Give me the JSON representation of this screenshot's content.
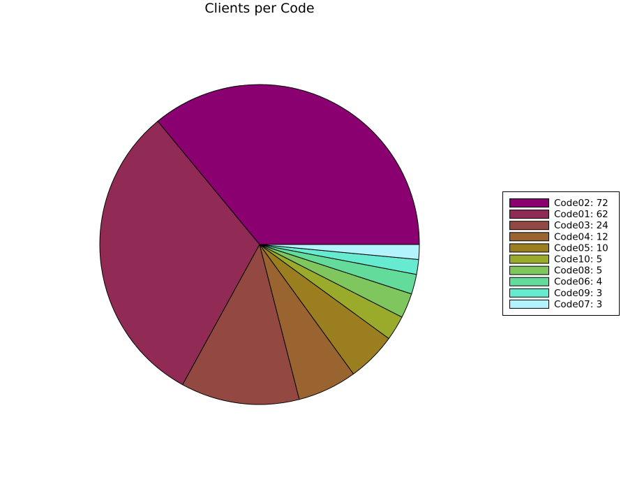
{
  "chart_data": {
    "type": "pie",
    "title": "Clients per Code",
    "legend_position": "right",
    "start_angle_deg": 0,
    "direction": "counterclockwise",
    "slices": [
      {
        "label": "Code02",
        "value": 72,
        "legend": "Code02: 72",
        "color": "#8b0071"
      },
      {
        "label": "Code01",
        "value": 62,
        "legend": "Code01: 62",
        "color": "#912b55"
      },
      {
        "label": "Code03",
        "value": 24,
        "legend": "Code03: 24",
        "color": "#934942"
      },
      {
        "label": "Code04",
        "value": 12,
        "legend": "Code04: 12",
        "color": "#9a6430"
      },
      {
        "label": "Code05",
        "value": 10,
        "legend": "Code05: 10",
        "color": "#9b7e20"
      },
      {
        "label": "Code10",
        "value": 5,
        "legend": "Code10: 5",
        "color": "#9aaa2b"
      },
      {
        "label": "Code08",
        "value": 5,
        "legend": "Code08: 5",
        "color": "#7fc65e"
      },
      {
        "label": "Code06",
        "value": 4,
        "legend": "Code06: 4",
        "color": "#63db9a"
      },
      {
        "label": "Code09",
        "value": 3,
        "legend": "Code09: 3",
        "color": "#66ead0"
      },
      {
        "label": "Code07",
        "value": 3,
        "legend": "Code07: 3",
        "color": "#b3f3fb"
      }
    ]
  }
}
